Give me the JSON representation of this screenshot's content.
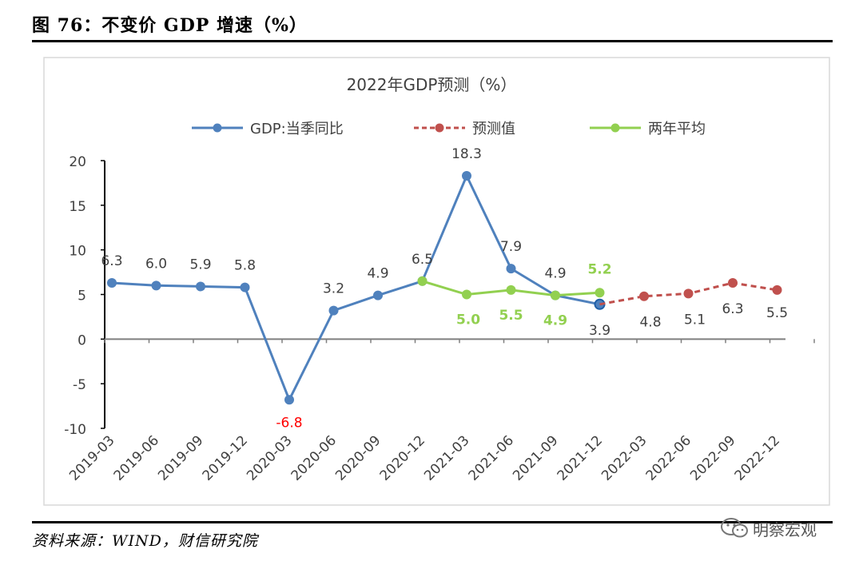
{
  "figure_title": "图 76：不变价 GDP 增速（%）",
  "source_note": "资料来源：WIND，财信研究院",
  "watermark_text": "明察宏观",
  "watermark_icon": "wechat-icon",
  "colors": {
    "gdp": "#4f81bd",
    "forecast": "#c0504d",
    "avg": "#92d050",
    "negative_label": "#ff0000",
    "text": "#404040"
  },
  "chart_data": {
    "type": "line",
    "title": "2022年GDP预测（%）",
    "categories": [
      "2019-03",
      "2019-06",
      "2019-09",
      "2019-12",
      "2020-03",
      "2020-06",
      "2020-09",
      "2020-12",
      "2021-03",
      "2021-06",
      "2021-09",
      "2021-12",
      "2022-03",
      "2022-06",
      "2022-09",
      "2022-12"
    ],
    "ylim": [
      -10,
      20
    ],
    "yticks": [
      "20",
      "15",
      "10",
      "5",
      "0",
      "-5",
      "-10"
    ],
    "legend_position": "top",
    "grid": false,
    "series": [
      {
        "name": "GDP:当季同比",
        "color": "#4f81bd",
        "style": "solid",
        "values": [
          6.3,
          6.0,
          5.9,
          5.8,
          -6.8,
          3.2,
          4.9,
          6.5,
          18.3,
          7.9,
          4.9,
          3.9,
          null,
          null,
          null,
          null
        ],
        "labels": [
          "6.3",
          "6.0",
          "5.9",
          "5.8",
          "-6.8",
          "3.2",
          "4.9",
          "6.5",
          "18.3",
          "7.9",
          "4.9",
          "3.9",
          "",
          "",
          "",
          ""
        ]
      },
      {
        "name": "预测值",
        "color": "#c0504d",
        "style": "dashed",
        "values": [
          null,
          null,
          null,
          null,
          null,
          null,
          null,
          null,
          null,
          null,
          null,
          3.9,
          4.8,
          5.1,
          6.3,
          5.5
        ],
        "labels": [
          "",
          "",
          "",
          "",
          "",
          "",
          "",
          "",
          "",
          "",
          "",
          "",
          "4.8",
          "5.1",
          "6.3",
          "5.5"
        ]
      },
      {
        "name": "两年平均",
        "color": "#92d050",
        "style": "solid",
        "values": [
          null,
          null,
          null,
          null,
          null,
          null,
          null,
          6.5,
          5.0,
          5.5,
          4.9,
          5.2,
          null,
          null,
          null,
          null
        ],
        "labels": [
          "",
          "",
          "",
          "",
          "",
          "",
          "",
          "",
          "5.0",
          "5.5",
          "4.9",
          "5.2",
          "",
          "",
          "",
          ""
        ]
      }
    ]
  }
}
